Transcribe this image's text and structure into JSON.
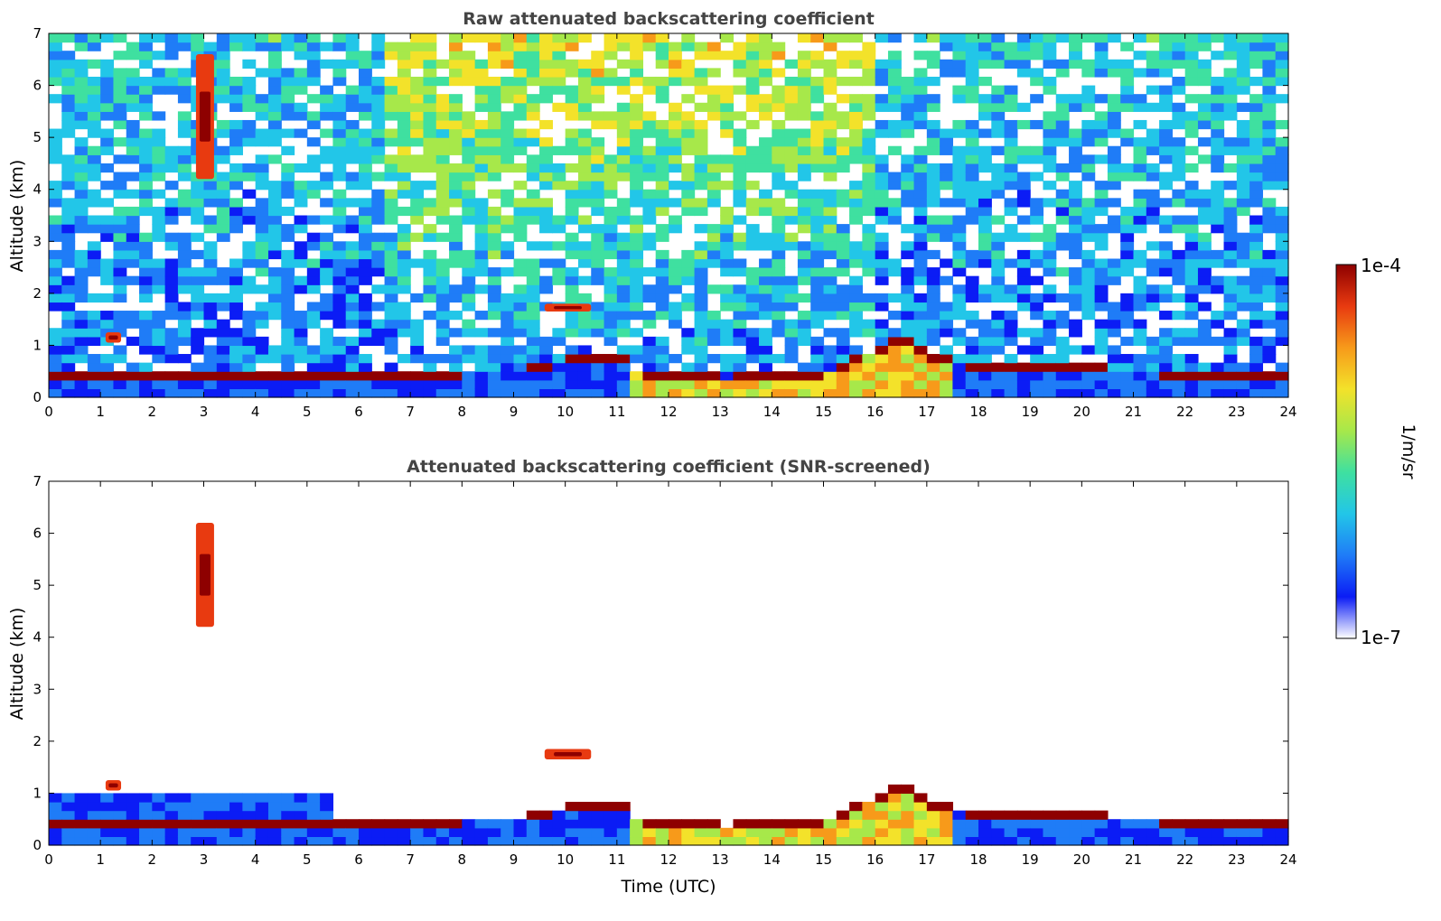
{
  "colors": {
    "colormap": [
      "#ffffff",
      "#0b1cf5",
      "#1f7cf7",
      "#22c6e8",
      "#3fe0a0",
      "#a7e84a",
      "#f3e22a",
      "#f79a1a",
      "#e83a10",
      "#8e0000"
    ],
    "axis": "#000000",
    "title": "#444444"
  },
  "chart_data": [
    {
      "type": "heatmap",
      "title": "Raw attenuated backscattering coefficient",
      "xlabel": "",
      "ylabel": "Altitude (km)",
      "xlim": [
        0,
        24
      ],
      "ylim": [
        0,
        7
      ],
      "xticks": [
        "0",
        "1",
        "2",
        "3",
        "4",
        "5",
        "6",
        "7",
        "8",
        "9",
        "10",
        "11",
        "12",
        "13",
        "14",
        "15",
        "16",
        "17",
        "18",
        "19",
        "20",
        "21",
        "22",
        "23",
        "24"
      ],
      "yticks": [
        "0",
        "1",
        "2",
        "3",
        "4",
        "5",
        "6",
        "7"
      ],
      "features": [
        {
          "name": "boundary-layer",
          "layer": [
            [
              0,
              0.45
            ],
            [
              5.6,
              0.4
            ],
            [
              6.9,
              0.45
            ],
            [
              9,
              0.5
            ],
            [
              10,
              0.68
            ],
            [
              11.3,
              0.82
            ],
            [
              11.3,
              0.5
            ],
            [
              13,
              0.35
            ],
            [
              15,
              0.45
            ],
            [
              16,
              0.9
            ],
            [
              16.6,
              1.1
            ],
            [
              17,
              0.75
            ],
            [
              18,
              0.6
            ],
            [
              20,
              0.55
            ],
            [
              22,
              0.45
            ],
            [
              24,
              0.42
            ]
          ]
        },
        {
          "name": "cloud-1h",
          "x": [
            1.1,
            1.4
          ],
          "y": [
            1.05,
            1.25
          ]
        },
        {
          "name": "cloud-3h",
          "x": [
            2.85,
            3.2
          ],
          "y": [
            4.2,
            6.6
          ]
        },
        {
          "name": "cloud-10h",
          "x": [
            9.6,
            10.5
          ],
          "y": [
            1.65,
            1.8
          ]
        }
      ]
    },
    {
      "type": "heatmap",
      "title": "Attenuated backscattering coefficient (SNR-screened)",
      "xlabel": "Time (UTC)",
      "ylabel": "Altitude (km)",
      "xlim": [
        0,
        24
      ],
      "ylim": [
        0,
        7
      ],
      "xticks": [
        "0",
        "1",
        "2",
        "3",
        "4",
        "5",
        "6",
        "7",
        "8",
        "9",
        "10",
        "11",
        "12",
        "13",
        "14",
        "15",
        "16",
        "17",
        "18",
        "19",
        "20",
        "21",
        "22",
        "23",
        "24"
      ],
      "yticks": [
        "0",
        "1",
        "2",
        "3",
        "4",
        "5",
        "6",
        "7"
      ],
      "features": [
        {
          "name": "boundary-layer",
          "layer": [
            [
              0,
              0.45
            ],
            [
              5.6,
              0.4
            ],
            [
              6.9,
              0.45
            ],
            [
              9,
              0.5
            ],
            [
              10,
              0.68
            ],
            [
              11.3,
              0.82
            ],
            [
              11.3,
              0.5
            ],
            [
              13,
              0.35
            ],
            [
              15,
              0.45
            ],
            [
              16,
              0.9
            ],
            [
              16.6,
              1.1
            ],
            [
              17,
              0.75
            ],
            [
              18,
              0.6
            ],
            [
              20,
              0.55
            ],
            [
              22,
              0.45
            ],
            [
              24,
              0.42
            ]
          ]
        },
        {
          "name": "cloud-1h",
          "x": [
            1.1,
            1.4
          ],
          "y": [
            1.05,
            1.25
          ]
        },
        {
          "name": "cloud-3h",
          "x": [
            2.85,
            3.2
          ],
          "y": [
            4.2,
            6.2
          ]
        },
        {
          "name": "cloud-10h",
          "x": [
            9.6,
            10.5
          ],
          "y": [
            1.65,
            1.85
          ]
        }
      ]
    }
  ],
  "colorbar": {
    "label": "1/m/sr",
    "max_label": "1e-4",
    "min_label": "1e-7"
  }
}
